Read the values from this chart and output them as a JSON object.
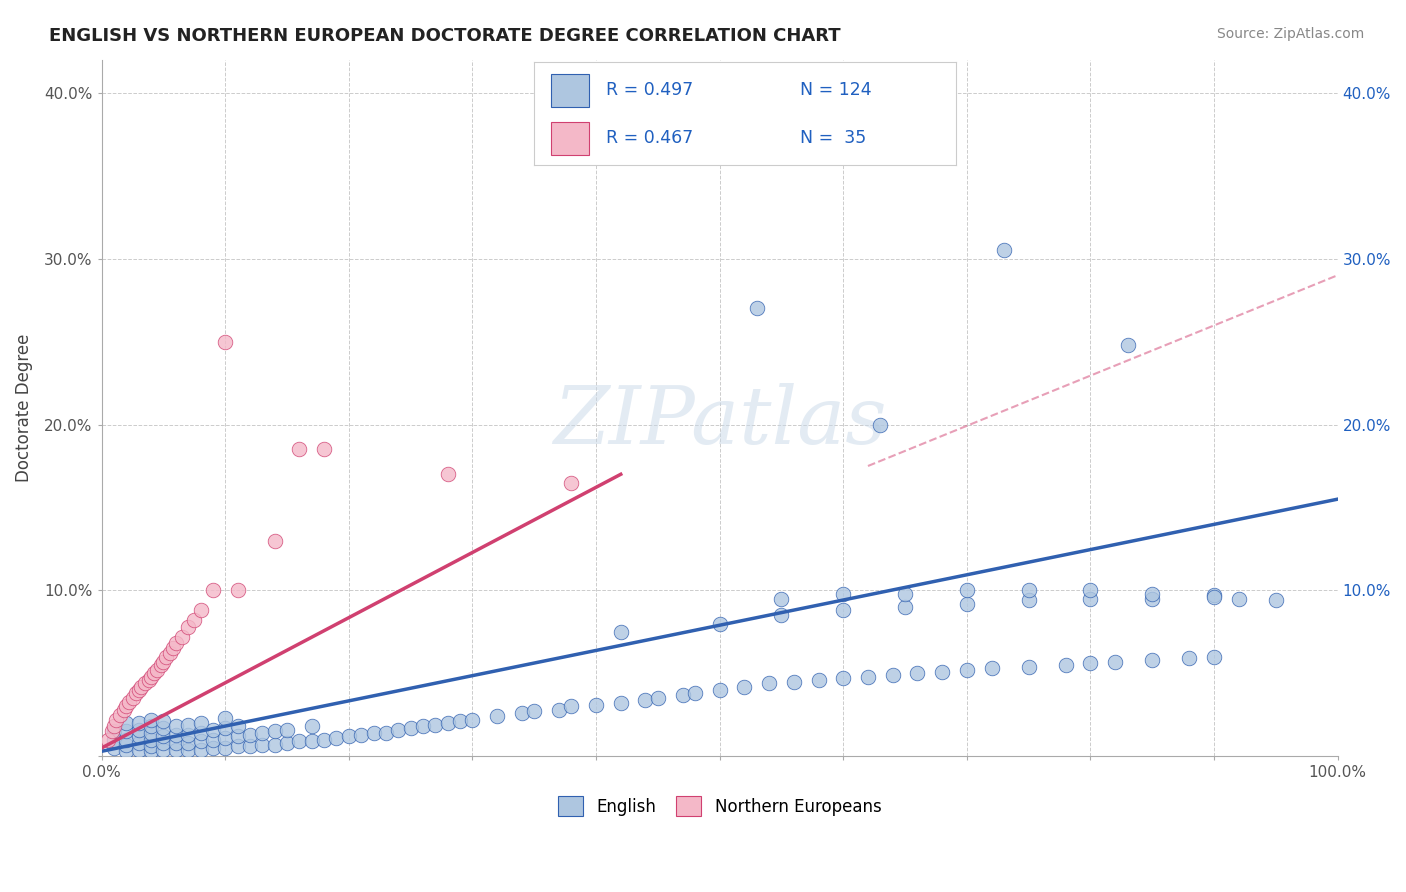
{
  "title": "ENGLISH VS NORTHERN EUROPEAN DOCTORATE DEGREE CORRELATION CHART",
  "source": "Source: ZipAtlas.com",
  "ylabel": "Doctorate Degree",
  "xlim": [
    0,
    1.0
  ],
  "ylim": [
    0,
    0.42
  ],
  "xticks": [
    0.0,
    0.1,
    0.2,
    0.3,
    0.4,
    0.5,
    0.6,
    0.7,
    0.8,
    0.9,
    1.0
  ],
  "xticklabels": [
    "0.0%",
    "",
    "",
    "",
    "",
    "",
    "",
    "",
    "",
    "",
    "100.0%"
  ],
  "yticks": [
    0.0,
    0.1,
    0.2,
    0.3,
    0.4
  ],
  "yticklabels_left": [
    "",
    "10.0%",
    "20.0%",
    "30.0%",
    "40.0%"
  ],
  "yticklabels_right": [
    "",
    "10.0%",
    "20.0%",
    "30.0%",
    "40.0%"
  ],
  "blue_color": "#aec6e0",
  "pink_color": "#f4b8c8",
  "blue_line_color": "#3060b0",
  "pink_line_color": "#d04070",
  "grid_color": "#cccccc",
  "background_color": "#ffffff",
  "legend_text_color": "#2060c0",
  "blue_scatter_x": [
    0.01,
    0.01,
    0.01,
    0.02,
    0.02,
    0.02,
    0.02,
    0.02,
    0.03,
    0.03,
    0.03,
    0.03,
    0.03,
    0.04,
    0.04,
    0.04,
    0.04,
    0.04,
    0.04,
    0.05,
    0.05,
    0.05,
    0.05,
    0.05,
    0.06,
    0.06,
    0.06,
    0.06,
    0.07,
    0.07,
    0.07,
    0.07,
    0.08,
    0.08,
    0.08,
    0.08,
    0.09,
    0.09,
    0.09,
    0.1,
    0.1,
    0.1,
    0.1,
    0.11,
    0.11,
    0.11,
    0.12,
    0.12,
    0.13,
    0.13,
    0.14,
    0.14,
    0.15,
    0.15,
    0.16,
    0.17,
    0.17,
    0.18,
    0.19,
    0.2,
    0.21,
    0.22,
    0.23,
    0.24,
    0.25,
    0.26,
    0.27,
    0.28,
    0.29,
    0.3,
    0.32,
    0.34,
    0.35,
    0.37,
    0.38,
    0.4,
    0.42,
    0.44,
    0.45,
    0.47,
    0.48,
    0.5,
    0.52,
    0.54,
    0.56,
    0.58,
    0.6,
    0.62,
    0.64,
    0.66,
    0.68,
    0.7,
    0.72,
    0.75,
    0.78,
    0.8,
    0.82,
    0.85,
    0.88,
    0.9,
    0.42,
    0.5,
    0.55,
    0.6,
    0.65,
    0.7,
    0.75,
    0.8,
    0.85,
    0.9,
    0.55,
    0.6,
    0.65,
    0.7,
    0.75,
    0.8,
    0.85,
    0.9,
    0.92,
    0.95,
    0.53,
    0.63,
    0.73,
    0.83
  ],
  "blue_scatter_y": [
    0.005,
    0.01,
    0.015,
    0.003,
    0.007,
    0.01,
    0.015,
    0.02,
    0.004,
    0.008,
    0.012,
    0.016,
    0.02,
    0.003,
    0.006,
    0.01,
    0.014,
    0.018,
    0.022,
    0.004,
    0.008,
    0.012,
    0.017,
    0.021,
    0.004,
    0.008,
    0.013,
    0.018,
    0.004,
    0.008,
    0.013,
    0.019,
    0.004,
    0.009,
    0.014,
    0.02,
    0.005,
    0.01,
    0.016,
    0.005,
    0.011,
    0.017,
    0.023,
    0.006,
    0.012,
    0.018,
    0.006,
    0.013,
    0.007,
    0.014,
    0.007,
    0.015,
    0.008,
    0.016,
    0.009,
    0.009,
    0.018,
    0.01,
    0.011,
    0.012,
    0.013,
    0.014,
    0.014,
    0.016,
    0.017,
    0.018,
    0.019,
    0.02,
    0.021,
    0.022,
    0.024,
    0.026,
    0.027,
    0.028,
    0.03,
    0.031,
    0.032,
    0.034,
    0.035,
    0.037,
    0.038,
    0.04,
    0.042,
    0.044,
    0.045,
    0.046,
    0.047,
    0.048,
    0.049,
    0.05,
    0.051,
    0.052,
    0.053,
    0.054,
    0.055,
    0.056,
    0.057,
    0.058,
    0.059,
    0.06,
    0.075,
    0.08,
    0.085,
    0.088,
    0.09,
    0.092,
    0.094,
    0.095,
    0.095,
    0.097,
    0.095,
    0.098,
    0.098,
    0.1,
    0.1,
    0.1,
    0.098,
    0.096,
    0.095,
    0.094,
    0.27,
    0.2,
    0.305,
    0.248
  ],
  "pink_scatter_x": [
    0.005,
    0.008,
    0.01,
    0.012,
    0.015,
    0.018,
    0.02,
    0.022,
    0.025,
    0.028,
    0.03,
    0.032,
    0.035,
    0.038,
    0.04,
    0.042,
    0.045,
    0.048,
    0.05,
    0.052,
    0.055,
    0.058,
    0.06,
    0.065,
    0.07,
    0.075,
    0.08,
    0.09,
    0.1,
    0.11,
    0.14,
    0.16,
    0.18,
    0.28,
    0.38
  ],
  "pink_scatter_y": [
    0.01,
    0.015,
    0.018,
    0.022,
    0.025,
    0.028,
    0.03,
    0.033,
    0.035,
    0.038,
    0.04,
    0.042,
    0.044,
    0.046,
    0.048,
    0.05,
    0.052,
    0.055,
    0.057,
    0.06,
    0.062,
    0.065,
    0.068,
    0.072,
    0.078,
    0.082,
    0.088,
    0.1,
    0.25,
    0.1,
    0.13,
    0.185,
    0.185,
    0.17,
    0.165
  ],
  "blue_trendline_x0": 0.0,
  "blue_trendline_y0": 0.003,
  "blue_trendline_x1": 1.0,
  "blue_trendline_y1": 0.155,
  "pink_trendline_x0": 0.0,
  "pink_trendline_y0": 0.005,
  "pink_trendline_x1": 0.42,
  "pink_trendline_y1": 0.17,
  "dashed_trendline_x0": 0.62,
  "dashed_trendline_y0": 0.175,
  "dashed_trendline_x1": 1.0,
  "dashed_trendline_y1": 0.29
}
